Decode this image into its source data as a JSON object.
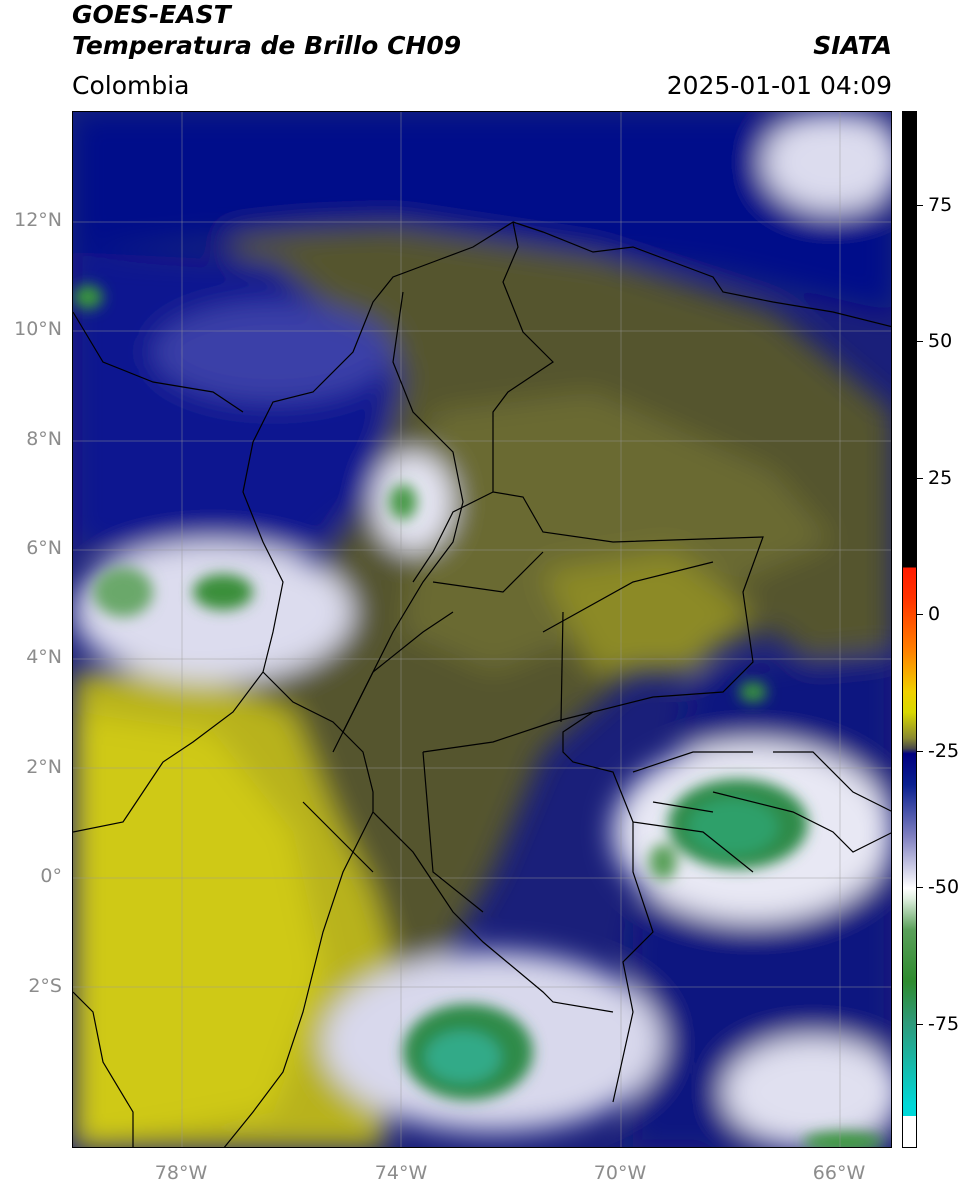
{
  "header": {
    "line1": "GOES-EAST",
    "line2": "Temperatura de Brillo CH09",
    "org": "SIATA",
    "region": "Colombia",
    "timestamp": "2025-01-01 04:09"
  },
  "map": {
    "lat_labels": [
      "12°N",
      "10°N",
      "8°N",
      "6°N",
      "4°N",
      "2°N",
      "0°",
      "2°S"
    ],
    "lon_labels": [
      "78°W",
      "74°W",
      "70°W",
      "66°W"
    ],
    "extent": {
      "lon": [
        -80,
        -65
      ],
      "lat": [
        -5,
        14
      ]
    },
    "gridlines": true,
    "coastlines_and_borders": true
  },
  "colorbar": {
    "ticks": [
      "75",
      "50",
      "25",
      "0",
      "-25",
      "-50",
      "-75"
    ],
    "range": [
      -100,
      90
    ],
    "colors": {
      "warm": "#000000",
      "red": "#ff1a00",
      "orange": "#ff8000",
      "yellow": "#e6dd00",
      "olive": "#6b6b2a",
      "navy": "#000080",
      "white": "#ffffff",
      "green": "#2e8b2e",
      "cyan": "#00d8d8"
    }
  }
}
